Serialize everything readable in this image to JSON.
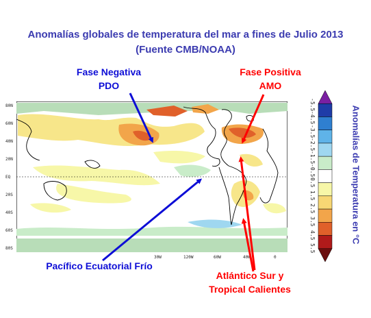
{
  "title": {
    "line1": "Anomalías globales de temperatura del mar  a fines de Julio 2013",
    "line2": "(Fuente CMB/NOAA)"
  },
  "annotations": {
    "pdo_line1": "Fase Negativa",
    "pdo_line2": "PDO",
    "amo_line1": "Fase Positiva",
    "amo_line2": "AMO",
    "pacific": "Pacífico Ecuatorial Frío",
    "atl_line1": "Atlántico Sur y",
    "atl_line2": "Tropical Calientes"
  },
  "map": {
    "lat_labels": [
      "80N",
      "60N",
      "40N",
      "20N",
      "EQ",
      "20S",
      "40S",
      "60S",
      "80S"
    ],
    "lon_labels": [
      "30W",
      "120W",
      "60W",
      "40W",
      "0"
    ]
  },
  "colorbar": {
    "title": "Anomalías de Temperatura en °C",
    "ticks": [
      "-5.5",
      "-4.5",
      "-3.5",
      "-2.5",
      "-1.5",
      "-0.5",
      "0.5",
      "1.5",
      "2.5",
      "3.5",
      "4.5",
      "5.5"
    ],
    "colors": [
      "#7a1fa2",
      "#1f3ca8",
      "#2f7fd0",
      "#5fb3e8",
      "#9fd7f0",
      "#c9ecc9",
      "#ffffff",
      "#f7f7a8",
      "#f7d774",
      "#f2a54a",
      "#e0602a",
      "#b01a1a",
      "#6b0f0f"
    ]
  },
  "colors": {
    "title": "#3b3bb0",
    "blue_label": "#0d0dd6",
    "red_label": "#ff0000"
  }
}
